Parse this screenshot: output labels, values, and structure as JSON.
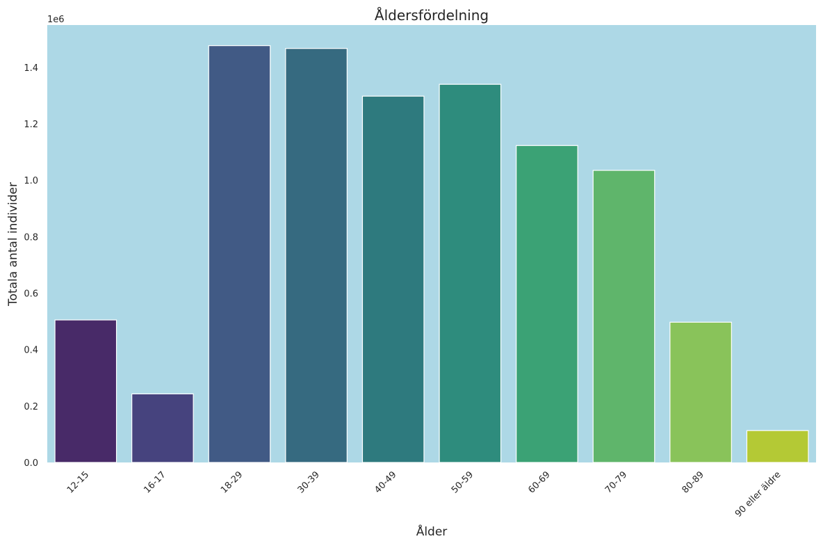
{
  "chart_data": {
    "type": "bar",
    "title": "Åldersfördelning",
    "xlabel": "Ålder",
    "ylabel": "Totala antal individer",
    "y_offset_label": "1e6",
    "categories": [
      "12-15",
      "16-17",
      "18-29",
      "30-39",
      "40-49",
      "50-59",
      "60-69",
      "70-79",
      "80-89",
      "90 eller äldre"
    ],
    "values": [
      505000,
      243000,
      1477000,
      1467000,
      1298000,
      1340000,
      1123000,
      1035000,
      497000,
      113000
    ],
    "ylim": [
      0,
      1550000
    ],
    "yticks": [
      0,
      200000,
      400000,
      600000,
      800000,
      1000000,
      1200000,
      1400000
    ],
    "ytick_labels": [
      "0.0",
      "0.2",
      "0.4",
      "0.6",
      "0.8",
      "1.0",
      "1.2",
      "1.4"
    ],
    "grid": false,
    "legend": "none",
    "plot_background": "#add8e6",
    "bar_edge_color": "#ffffff",
    "colors": [
      "#482a68",
      "#46437e",
      "#415a85",
      "#366a80",
      "#2e7a7e",
      "#2e8c7d",
      "#3ba275",
      "#5fb56b",
      "#89c35a",
      "#b4c935"
    ]
  }
}
